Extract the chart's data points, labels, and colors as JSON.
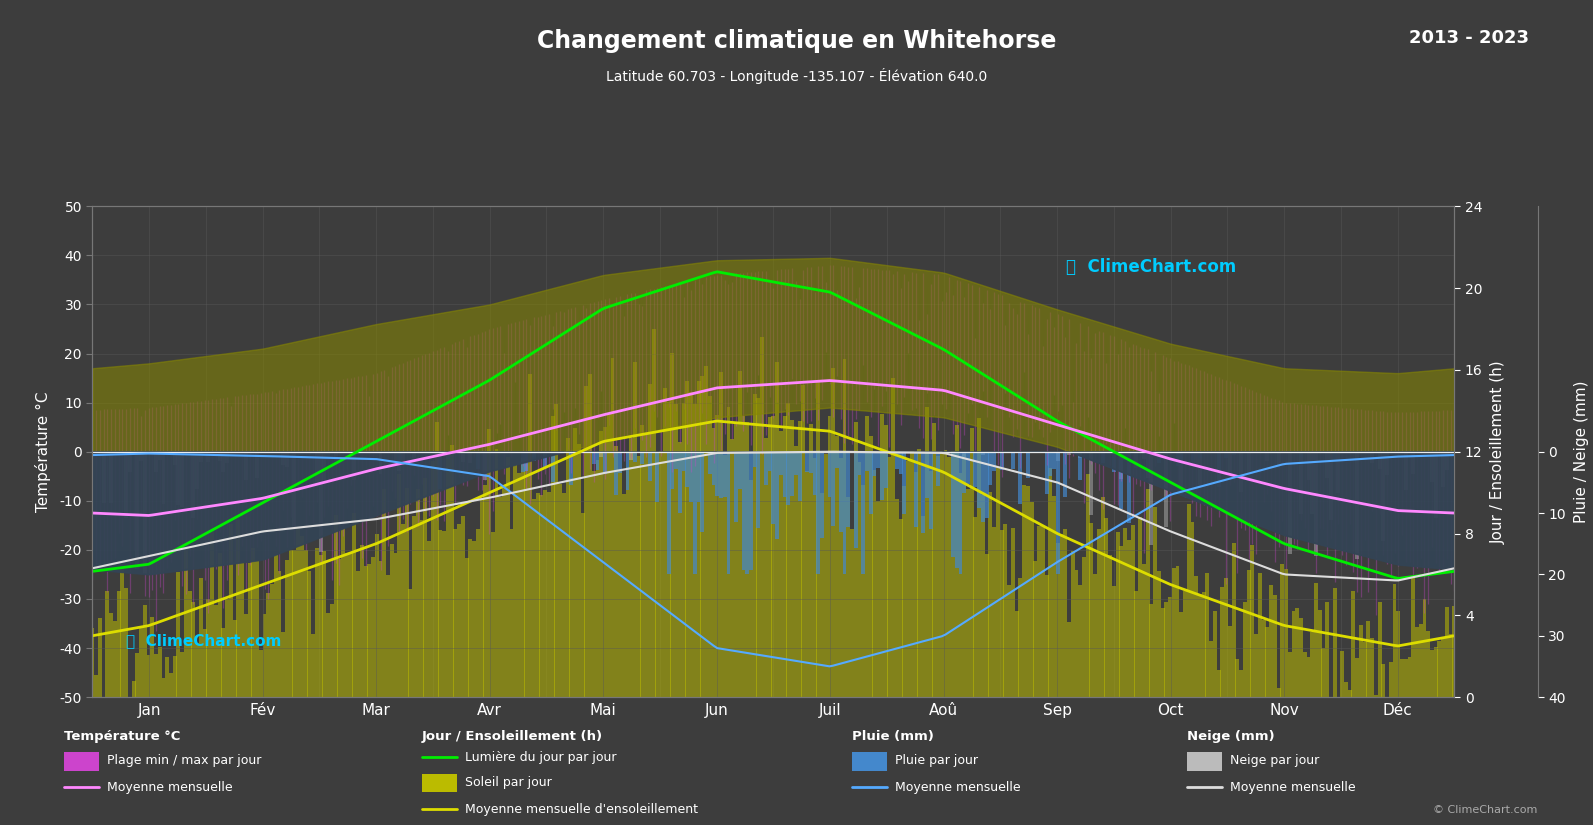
{
  "title": "Changement climatique en Whitehorse",
  "subtitle": "Latitude 60.703 - Longitude -135.107 - Élévation 640.0",
  "year_range": "2013 - 2023",
  "background_color": "#3d3d3d",
  "plot_bg_color": "#3d3d3d",
  "months_fr": [
    "Jan",
    "Fév",
    "Mar",
    "Avr",
    "Mai",
    "Jun",
    "Juil",
    "Aoû",
    "Sep",
    "Oct",
    "Nov",
    "Déc"
  ],
  "temp_ticks": [
    -50,
    -40,
    -30,
    -20,
    -10,
    0,
    10,
    20,
    30,
    40,
    50
  ],
  "daylight_monthly": [
    6.5,
    9.5,
    12.5,
    15.5,
    19.0,
    20.8,
    19.8,
    17.0,
    13.5,
    10.5,
    7.5,
    5.8
  ],
  "sunshine_monthly": [
    3.5,
    5.5,
    7.5,
    10.0,
    12.5,
    13.5,
    13.0,
    11.0,
    8.0,
    5.5,
    3.5,
    2.5
  ],
  "temp_abs_max_monthly": [
    9.0,
    12.0,
    16.0,
    25.0,
    31.0,
    36.0,
    38.0,
    36.0,
    28.0,
    19.0,
    10.0,
    8.0
  ],
  "temp_abs_min_monthly": [
    -52.0,
    -49.0,
    -40.0,
    -28.0,
    -14.0,
    -2.0,
    2.0,
    0.0,
    -10.0,
    -28.0,
    -44.0,
    -50.0
  ],
  "temp_avg_max_monthly": [
    18.0,
    21.0,
    26.0,
    30.0,
    36.0,
    39.0,
    39.5,
    36.5,
    29.0,
    22.0,
    17.0,
    16.0
  ],
  "temp_avg_min_monthly": [
    -25.0,
    -22.0,
    -13.0,
    -4.0,
    2.0,
    7.0,
    9.0,
    7.0,
    1.0,
    -8.0,
    -17.0,
    -23.0
  ],
  "temp_mean_monthly": [
    -13.0,
    -9.5,
    -3.5,
    1.5,
    7.5,
    13.0,
    14.5,
    12.5,
    5.5,
    -1.5,
    -7.5,
    -12.0
  ],
  "rain_monthly_max": [
    0.5,
    1.0,
    2.0,
    6.0,
    22.0,
    38.0,
    42.0,
    36.0,
    22.0,
    9.0,
    2.5,
    1.0
  ],
  "snow_monthly_max": [
    22.0,
    18.0,
    14.0,
    10.0,
    5.0,
    0.5,
    0.0,
    0.5,
    7.0,
    16.0,
    24.0,
    26.0
  ],
  "rain_mean_monthly": [
    0.3,
    0.7,
    1.2,
    4.0,
    18.0,
    32.0,
    35.0,
    30.0,
    18.0,
    7.0,
    2.0,
    0.8
  ],
  "snow_mean_monthly": [
    17.0,
    13.0,
    11.0,
    7.5,
    3.5,
    0.2,
    0.0,
    0.2,
    5.0,
    13.0,
    20.0,
    21.0
  ],
  "colors": {
    "daylight_line": "#00ee00",
    "sunshine_bar": "#bbbb00",
    "sunshine_line": "#dddd00",
    "temp_daily_line": "#cc44cc",
    "temp_mean_line": "#ff88ff",
    "rain_bar": "#4488cc",
    "snow_bar": "#bbbbbb",
    "rain_mean_line": "#55aaff",
    "snow_mean_line": "#dddddd",
    "grid": "#595959",
    "text": "#ffffff",
    "zero_line": "#ffffff"
  },
  "n_days": 365
}
